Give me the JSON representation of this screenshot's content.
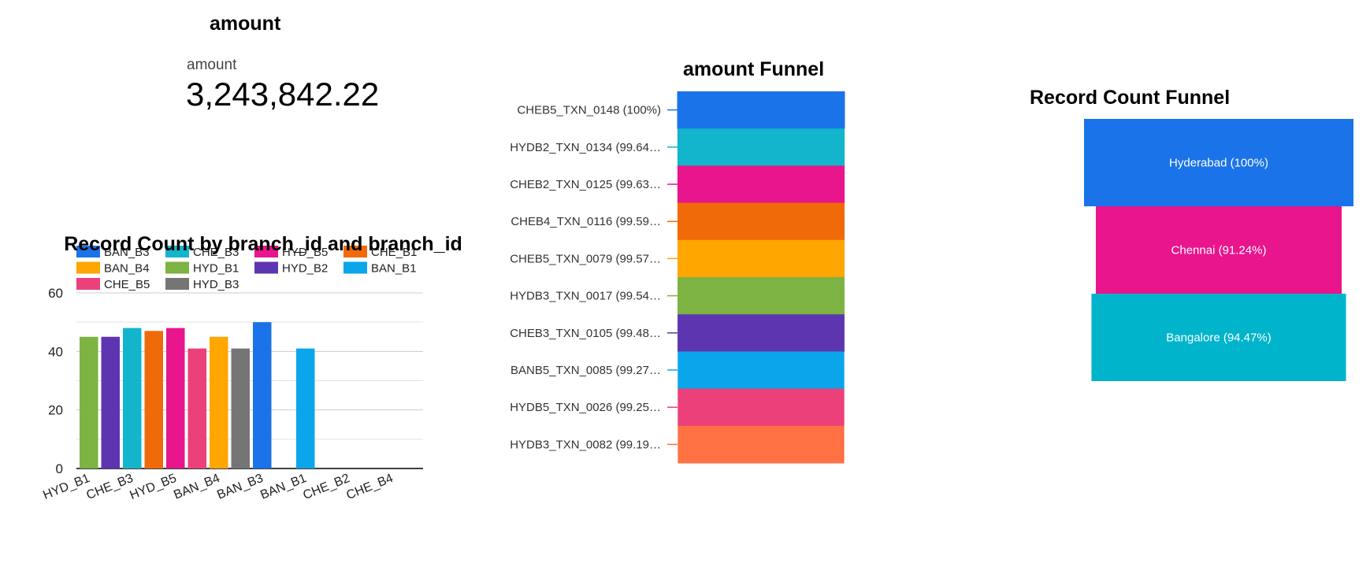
{
  "scorecard": {
    "title": "amount",
    "label": "amount",
    "value": "3,243,842.22"
  },
  "chart_data": [
    {
      "type": "bar",
      "title": "Record Count by branch_id and branch_id",
      "legend": [
        {
          "name": "BAN_B3",
          "color": "#1a73e8"
        },
        {
          "name": "CHE_B3",
          "color": "#12b5cb"
        },
        {
          "name": "HYD_B5",
          "color": "#e8158c"
        },
        {
          "name": "CHE_B1",
          "color": "#f06a0a"
        },
        {
          "name": "BAN_B4",
          "color": "#ffa600"
        },
        {
          "name": "HYD_B1",
          "color": "#7cb342"
        },
        {
          "name": "HYD_B2",
          "color": "#5e35b1"
        },
        {
          "name": "BAN_B1",
          "color": "#0ba5ec"
        },
        {
          "name": "CHE_B5",
          "color": "#ec407a"
        },
        {
          "name": "HYD_B3",
          "color": "#757575"
        }
      ],
      "x_tick_labels": [
        "HYD_B1",
        "CHE_B3",
        "HYD_B5",
        "BAN_B4",
        "BAN_B3",
        "BAN_B1",
        "CHE_B2",
        "CHE_B4"
      ],
      "bars": [
        {
          "series": "HYD_B1",
          "value": 45
        },
        {
          "series": "HYD_B2",
          "value": 45
        },
        {
          "series": "CHE_B3",
          "value": 48
        },
        {
          "series": "CHE_B1",
          "value": 47
        },
        {
          "series": "HYD_B5",
          "value": 48
        },
        {
          "series": "CHE_B5",
          "value": 41
        },
        {
          "series": "BAN_B4",
          "value": 45
        },
        {
          "series": "HYD_B3",
          "value": 41
        },
        {
          "series": "BAN_B3",
          "value": 50
        },
        {
          "series": "",
          "value": 0
        },
        {
          "series": "BAN_B1",
          "value": 41
        },
        {
          "series": "",
          "value": 0
        },
        {
          "series": "",
          "value": 0
        },
        {
          "series": "",
          "value": 0
        },
        {
          "series": "",
          "value": 0
        },
        {
          "series": "",
          "value": 0
        }
      ],
      "y_ticks": [
        0,
        20,
        40,
        60
      ],
      "ylim": [
        0,
        60
      ],
      "grid": true,
      "legend_position": "top"
    },
    {
      "type": "funnel",
      "title": "amount Funnel",
      "stages": [
        {
          "label": "CHEB5_TXN_0148 (100%)",
          "percent": 100,
          "color": "#1a73e8"
        },
        {
          "label": "HYDB2_TXN_0134 (99.64…",
          "percent": 99.64,
          "color": "#12b5cb"
        },
        {
          "label": "CHEB2_TXN_0125 (99.63…",
          "percent": 99.63,
          "color": "#e8158c"
        },
        {
          "label": "CHEB4_TXN_0116 (99.59…",
          "percent": 99.59,
          "color": "#f06a0a"
        },
        {
          "label": "CHEB5_TXN_0079 (99.57…",
          "percent": 99.57,
          "color": "#ffa600"
        },
        {
          "label": "HYDB3_TXN_0017 (99.54…",
          "percent": 99.54,
          "color": "#7cb342"
        },
        {
          "label": "CHEB3_TXN_0105 (99.48…",
          "percent": 99.48,
          "color": "#5e35b1"
        },
        {
          "label": "BANB5_TXN_0085 (99.27…",
          "percent": 99.27,
          "color": "#0ba5ec"
        },
        {
          "label": "HYDB5_TXN_0026 (99.25…",
          "percent": 99.25,
          "color": "#ec407a"
        },
        {
          "label": "HYDB3_TXN_0082 (99.19…",
          "percent": 99.19,
          "color": "#ff7043"
        }
      ]
    },
    {
      "type": "funnel",
      "title": "Record Count Funnel",
      "stages": [
        {
          "label": "Hyderabad (100%)",
          "percent": 100,
          "color": "#1a73e8"
        },
        {
          "label": "Chennai (91.24%)",
          "percent": 91.24,
          "color": "#e8158c"
        },
        {
          "label": "Bangalore (94.47%)",
          "percent": 94.47,
          "color": "#00b4cc"
        }
      ]
    }
  ]
}
